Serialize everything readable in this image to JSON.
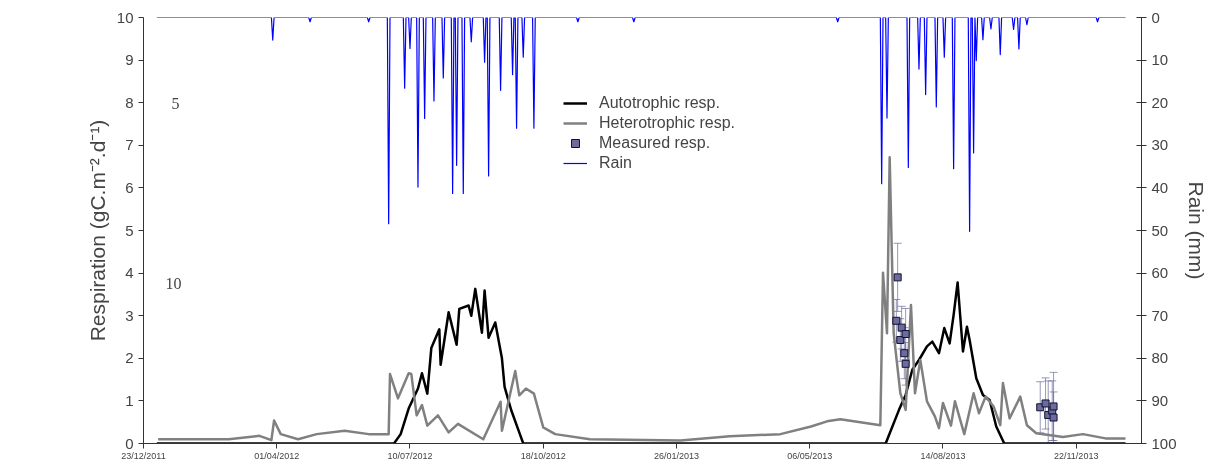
{
  "chart_data": {
    "type": "line",
    "xlabel": null,
    "ylabel": "Respiration (gC.m⁻².d⁻¹)",
    "y2label": "Rain (mm)",
    "xlim": [
      "2011-12-23",
      "2014-01-10"
    ],
    "xticks": [
      {
        "value": "2011-12-23",
        "label": "23/12/2011"
      },
      {
        "value": "2012-04-01",
        "label": "01/04/2012"
      },
      {
        "value": "2012-07-10",
        "label": "10/07/2012"
      },
      {
        "value": "2012-10-18",
        "label": "18/10/2012"
      },
      {
        "value": "2013-01-26",
        "label": "26/01/2013"
      },
      {
        "value": "2013-05-06",
        "label": "06/05/2013"
      },
      {
        "value": "2013-08-14",
        "label": "14/08/2013"
      },
      {
        "value": "2013-11-22",
        "label": "22/11/2013"
      }
    ],
    "ylim": [
      0,
      10
    ],
    "yticks": [
      0,
      1,
      2,
      3,
      4,
      5,
      6,
      7,
      8,
      9,
      10
    ],
    "y2lim": [
      100,
      0
    ],
    "y2ticks": [
      0,
      10,
      20,
      30,
      40,
      50,
      60,
      70,
      80,
      90,
      100
    ],
    "legend": "top",
    "annotations": [
      "5",
      "10"
    ],
    "series": [
      {
        "name": "Autotrophic resp.",
        "color": "#000000",
        "x": [
          "2012-01-02",
          "2012-06-28",
          "2012-07-03",
          "2012-07-09",
          "2012-07-16",
          "2012-07-19",
          "2012-07-23",
          "2012-07-26",
          "2012-08-01",
          "2012-08-02",
          "2012-08-08",
          "2012-08-14",
          "2012-08-16",
          "2012-08-23",
          "2012-08-25",
          "2012-08-28",
          "2012-09-02",
          "2012-09-04",
          "2012-09-07",
          "2012-09-12",
          "2012-09-17",
          "2012-09-19",
          "2012-09-24",
          "2012-09-30",
          "2012-10-03",
          "2013-07-02",
          "2013-07-12",
          "2013-07-17",
          "2013-07-22",
          "2013-07-27",
          "2013-08-02",
          "2013-08-06",
          "2013-08-11",
          "2013-08-15",
          "2013-08-19",
          "2013-08-22",
          "2013-08-25",
          "2013-08-29",
          "2013-09-01",
          "2013-09-03",
          "2013-09-08",
          "2013-09-13",
          "2013-09-18",
          "2013-09-23",
          "2013-09-29",
          "2013-12-29"
        ],
        "values": [
          0,
          0,
          0.22,
          0.82,
          1.29,
          1.65,
          1.17,
          2.24,
          2.68,
          1.85,
          3.08,
          2.32,
          3.16,
          3.24,
          3.0,
          3.63,
          2.6,
          3.59,
          2.48,
          2.84,
          2.0,
          1.33,
          0.78,
          0.26,
          0,
          0,
          0.79,
          1.14,
          1.73,
          1.96,
          2.28,
          2.39,
          2.12,
          2.71,
          2.35,
          3.02,
          3.78,
          2.16,
          2.74,
          2.43,
          1.53,
          1.14,
          1.02,
          0.4,
          0,
          0
        ]
      },
      {
        "name": "Heterotrophic resp.",
        "color": "#808080",
        "x": [
          "2012-01-03",
          "2012-02-25",
          "2012-03-19",
          "2012-03-28",
          "2012-03-30",
          "2012-04-04",
          "2012-04-17",
          "2012-05-01",
          "2012-05-22",
          "2012-06-09",
          "2012-06-24",
          "2012-06-25",
          "2012-07-01",
          "2012-07-09",
          "2012-07-11",
          "2012-07-15",
          "2012-07-19",
          "2012-07-23",
          "2012-07-31",
          "2012-08-08",
          "2012-08-15",
          "2012-09-03",
          "2012-09-16",
          "2012-09-17",
          "2012-09-27",
          "2012-09-30",
          "2012-10-05",
          "2012-10-11",
          "2012-10-18",
          "2012-10-27",
          "2012-11-22",
          "2013-01-29",
          "2013-03-07",
          "2013-04-14",
          "2013-05-07",
          "2013-05-19",
          "2013-05-29",
          "2013-06-28",
          "2013-06-30",
          "2013-07-03",
          "2013-07-05",
          "2013-07-08",
          "2013-07-13",
          "2013-07-17",
          "2013-07-21",
          "2013-07-24",
          "2013-07-28",
          "2013-08-02",
          "2013-08-08",
          "2013-08-11",
          "2013-08-14",
          "2013-08-20",
          "2013-08-23",
          "2013-08-30",
          "2013-09-06",
          "2013-09-10",
          "2013-09-15",
          "2013-09-21",
          "2013-09-26",
          "2013-09-28",
          "2013-10-03",
          "2013-10-11",
          "2013-10-16",
          "2013-10-23",
          "2013-11-12",
          "2013-11-27",
          "2013-12-14",
          "2013-12-29"
        ],
        "values": [
          0.1,
          0.1,
          0.18,
          0.08,
          0.54,
          0.22,
          0.1,
          0.22,
          0.3,
          0.22,
          0.22,
          1.63,
          1.06,
          1.65,
          1.63,
          0.66,
          0.9,
          0.42,
          0.66,
          0.26,
          0.46,
          0.1,
          0.98,
          0.3,
          1.7,
          1.13,
          1.29,
          1.17,
          0.38,
          0.22,
          0.1,
          0.07,
          0.17,
          0.22,
          0.4,
          0.52,
          0.57,
          0.43,
          4.01,
          2.59,
          6.72,
          2.59,
          1.18,
          0.79,
          3.25,
          1.18,
          1.96,
          0.99,
          0.63,
          0.36,
          0.95,
          0.42,
          0.99,
          0.22,
          1.18,
          0.71,
          1.1,
          0.87,
          0.43,
          1.42,
          0.59,
          1.1,
          0.43,
          0.24,
          0.15,
          0.22,
          0.12,
          0.12
        ]
      },
      {
        "name": "Measured resp.",
        "color": "#6b6b9e",
        "type": "scatter",
        "marker": "square",
        "x": [
          "2013-07-10",
          "2013-07-11",
          "2013-07-13",
          "2013-07-14",
          "2013-07-16",
          "2013-07-17",
          "2013-07-17",
          "2013-10-26",
          "2013-10-30",
          "2013-11-01",
          "2013-11-04",
          "2013-11-05",
          "2013-11-05"
        ],
        "values": [
          2.88,
          3.9,
          2.43,
          2.72,
          2.12,
          2.57,
          1.87,
          0.85,
          0.94,
          0.67,
          0.77,
          0.87,
          0.61
        ],
        "errors": [
          0.5,
          0.8,
          0.5,
          0.5,
          0.6,
          0.6,
          0.5,
          0.6,
          0.6,
          0.8,
          0.7,
          0.8,
          0.6
        ]
      },
      {
        "name": "Rain",
        "color": "#0000ff",
        "axis": "y2",
        "x": [
          "2012-01-02",
          "2012-03-28",
          "2012-03-29",
          "2012-03-30",
          "2012-04-25",
          "2012-04-26",
          "2012-04-27",
          "2012-06-08",
          "2012-06-09",
          "2012-06-10",
          "2012-06-23",
          "2012-06-24",
          "2012-06-25",
          "2012-07-05",
          "2012-07-06",
          "2012-07-07",
          "2012-07-09",
          "2012-07-10",
          "2012-07-11",
          "2012-07-15",
          "2012-07-16",
          "2012-07-17",
          "2012-07-20",
          "2012-07-21",
          "2012-07-22",
          "2012-07-27",
          "2012-07-28",
          "2012-07-29",
          "2012-08-03",
          "2012-08-04",
          "2012-08-05",
          "2012-08-10",
          "2012-08-11",
          "2012-08-12",
          "2012-08-13",
          "2012-08-14",
          "2012-08-15",
          "2012-08-18",
          "2012-08-19",
          "2012-08-20",
          "2012-08-24",
          "2012-08-25",
          "2012-08-26",
          "2012-09-03",
          "2012-09-04",
          "2012-09-05",
          "2012-09-06",
          "2012-09-07",
          "2012-09-08",
          "2012-09-15",
          "2012-09-16",
          "2012-09-17",
          "2012-09-24",
          "2012-09-25",
          "2012-09-26",
          "2012-09-27",
          "2012-09-28",
          "2012-09-29",
          "2012-10-02",
          "2012-10-03",
          "2012-10-04",
          "2012-10-10",
          "2012-10-11",
          "2012-10-12",
          "2012-11-12",
          "2012-11-13",
          "2012-11-14",
          "2012-12-24",
          "2012-12-25",
          "2012-12-26",
          "2013-05-26",
          "2013-05-27",
          "2013-05-28",
          "2013-06-28",
          "2013-06-29",
          "2013-06-30",
          "2013-07-02",
          "2013-07-03",
          "2013-07-04",
          "2013-07-18",
          "2013-07-19",
          "2013-07-20",
          "2013-07-26",
          "2013-07-27",
          "2013-07-28",
          "2013-07-31",
          "2013-08-01",
          "2013-08-02",
          "2013-08-08",
          "2013-08-09",
          "2013-08-10",
          "2013-08-14",
          "2013-08-15",
          "2013-08-16",
          "2013-08-21",
          "2013-08-22",
          "2013-08-23",
          "2013-09-02",
          "2013-09-03",
          "2013-09-04",
          "2013-09-05",
          "2013-09-06",
          "2013-09-07",
          "2013-09-08",
          "2013-09-09",
          "2013-09-12",
          "2013-09-13",
          "2013-09-14",
          "2013-09-18",
          "2013-09-19",
          "2013-09-20",
          "2013-09-25",
          "2013-09-26",
          "2013-09-27",
          "2013-10-05",
          "2013-10-06",
          "2013-10-07",
          "2013-10-09",
          "2013-10-10",
          "2013-10-11",
          "2013-10-15",
          "2013-10-16",
          "2013-10-17",
          "2013-12-07",
          "2013-12-08",
          "2013-12-09",
          "2013-12-29"
        ],
        "values": [
          0,
          0,
          5.3,
          0,
          0,
          1,
          0,
          0,
          1,
          0,
          0,
          48.4,
          0,
          0,
          16.6,
          0,
          0,
          7.3,
          0,
          0,
          39.8,
          0,
          0,
          23.7,
          0,
          0,
          19.6,
          0,
          0,
          14.2,
          0,
          0,
          41.3,
          0,
          0,
          34.7,
          0,
          0,
          41.3,
          0,
          0,
          5.7,
          0,
          0,
          10.5,
          0,
          0,
          37.2,
          0,
          0,
          17.1,
          0,
          0,
          13.4,
          0,
          0,
          26,
          0,
          0,
          9.3,
          0,
          0,
          26,
          0,
          0,
          1,
          0,
          0,
          1,
          0,
          0,
          1,
          0,
          0,
          39,
          0,
          0,
          23.6,
          0,
          0,
          35.2,
          0,
          0,
          12.1,
          0,
          0,
          18.1,
          0,
          0,
          21,
          0,
          0,
          9.3,
          0,
          0,
          35.5,
          0,
          0,
          50.2,
          0,
          0,
          31.8,
          0,
          10.1,
          0,
          0,
          5.2,
          0,
          0,
          2.7,
          0,
          0,
          8.7,
          0,
          0,
          2.8,
          0,
          0,
          7.4,
          0,
          0,
          1.7,
          0,
          0,
          1,
          0,
          0
        ]
      }
    ]
  }
}
